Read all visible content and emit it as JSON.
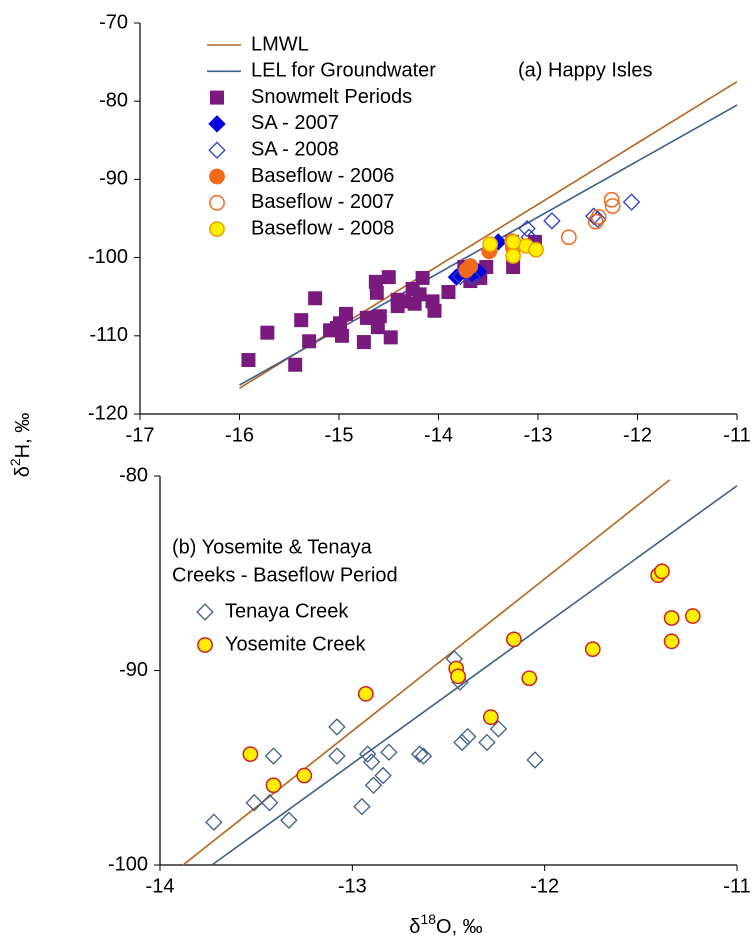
{
  "chart_data": [
    {
      "type": "scatter",
      "annotation": "(a) Happy Isles",
      "ylabel_parts": [
        "δ",
        "2",
        "H, ‰"
      ],
      "xlim": [
        -17,
        -11
      ],
      "xticks": [
        -17,
        -16,
        -15,
        -14,
        -13,
        -12,
        -11
      ],
      "ylim": [
        -120,
        -70
      ],
      "yticks": [
        -120,
        -110,
        -100,
        -90,
        -80,
        -70
      ],
      "series": [
        {
          "name": "LMWL",
          "mark": "line",
          "color": "#b5651d",
          "x": [
            -16,
            -11
          ],
          "values": [
            -116.7,
            -77.5
          ]
        },
        {
          "name": "LEL for Groundwater",
          "mark": "line",
          "color": "#3d5f8a",
          "x": [
            -16,
            -11
          ],
          "values": [
            -116.3,
            -80.5
          ]
        },
        {
          "name": "Snowmelt Periods",
          "mark": "square",
          "filled": true,
          "color": "#7b1a7e",
          "x": [
            -15.91,
            -15.72,
            -15.44,
            -15.38,
            -15.3,
            -15.24,
            -15.09,
            -15.02,
            -14.99,
            -14.97,
            -14.93,
            -14.75,
            -14.72,
            -14.69,
            -14.63,
            -14.62,
            -14.62,
            -14.61,
            -14.59,
            -14.5,
            -14.48,
            -14.41,
            -14.41,
            -14.34,
            -14.26,
            -14.24,
            -14.19,
            -14.16,
            -14.06,
            -14.04,
            -13.9,
            -13.74,
            -13.68,
            -13.58,
            -13.52,
            -13.26,
            -13.25,
            -13.03
          ],
          "values": [
            -113.1,
            -109.6,
            -113.7,
            -108.0,
            -110.7,
            -105.2,
            -109.3,
            -109.0,
            -108.4,
            -110.0,
            -107.2,
            -110.8,
            -107.7,
            -107.7,
            -103.1,
            -104.5,
            -107.7,
            -108.9,
            -107.5,
            -102.5,
            -110.2,
            -106.2,
            -105.4,
            -105.6,
            -104.0,
            -105.9,
            -104.7,
            -102.6,
            -105.6,
            -106.8,
            -104.4,
            -101.2,
            -103.0,
            -102.6,
            -101.2,
            -98.0,
            -101.2,
            -98.0
          ]
        },
        {
          "name": "SA - 2007",
          "mark": "diamond",
          "filled": true,
          "color": "#0000e0",
          "x": [
            -13.82,
            -13.72,
            -13.6,
            -13.4,
            -13.66
          ],
          "values": [
            -102.5,
            -101.3,
            -101.8,
            -98.0,
            -102.0
          ]
        },
        {
          "name": "SA - 2008",
          "mark": "diamond",
          "filled": false,
          "color": "#2a3fc0",
          "x": [
            -13.78,
            -13.66,
            -13.11,
            -13.09,
            -12.86,
            -12.44,
            -12.4,
            -12.06
          ],
          "values": [
            -102.4,
            -102.5,
            -96.3,
            -97.4,
            -95.3,
            -94.7,
            -95.1,
            -92.9
          ]
        },
        {
          "name": "Baseflow - 2006",
          "mark": "circle",
          "filled": true,
          "color": "#f26b1d",
          "x": [
            -13.72,
            -13.68,
            -13.49,
            -13.26,
            -13.25,
            -13.23
          ],
          "values": [
            -101.6,
            -101.1,
            -99.2,
            -97.9,
            -98.8,
            -98.4
          ]
        },
        {
          "name": "Baseflow - 2007",
          "mark": "circle",
          "filled": false,
          "color": "#f26b1d",
          "x": [
            -12.42,
            -12.39,
            -12.26,
            -12.25,
            -12.69
          ],
          "values": [
            -95.4,
            -94.8,
            -92.6,
            -93.4,
            -97.4
          ]
        },
        {
          "name": "Baseflow - 2008",
          "mark": "circle",
          "filled": true,
          "color": "#ffee00",
          "edge": "#e8a000",
          "x": [
            -13.48,
            -13.25,
            -13.12,
            -13.02,
            -13.25
          ],
          "values": [
            -98.3,
            -99.8,
            -98.5,
            -99.0,
            -98.0
          ]
        }
      ]
    },
    {
      "type": "scatter",
      "annotation_lines": [
        "(b) Yosemite & Tenaya",
        "Creeks - Baseflow Period"
      ],
      "xlabel_parts": [
        "δ",
        "18",
        "O, ‰"
      ],
      "xlim": [
        -14,
        -11
      ],
      "xticks": [
        -14,
        -13,
        -12,
        -11
      ],
      "ylim": [
        -100,
        -80
      ],
      "yticks": [
        -100,
        -90,
        -80
      ],
      "series": [
        {
          "mark": "line",
          "color": "#b5651d",
          "x": [
            -13.88,
            -11.35
          ],
          "values": [
            -100,
            -80.2
          ]
        },
        {
          "mark": "line",
          "color": "#3d5f8a",
          "x": [
            -13.73,
            -11
          ],
          "values": [
            -100,
            -80.5
          ]
        },
        {
          "name": "Tenaya Creek",
          "mark": "diamond",
          "filled": false,
          "color": "#3d5f8a",
          "x": [
            -13.72,
            -13.51,
            -13.43,
            -13.41,
            -13.33,
            -13.08,
            -13.08,
            -12.95,
            -12.92,
            -12.9,
            -12.89,
            -12.84,
            -12.81,
            -12.65,
            -12.63,
            -12.47,
            -12.44,
            -12.43,
            -12.4,
            -12.3,
            -12.24,
            -12.05
          ],
          "values": [
            -97.8,
            -96.8,
            -96.8,
            -94.4,
            -97.7,
            -92.9,
            -94.4,
            -97.0,
            -94.3,
            -94.7,
            -95.9,
            -95.4,
            -94.2,
            -94.3,
            -94.4,
            -89.4,
            -90.6,
            -93.7,
            -93.4,
            -93.7,
            -93.0,
            -94.6
          ]
        },
        {
          "name": "Yosemite Creek",
          "mark": "circle",
          "filled": true,
          "color": "#ffee00",
          "edge": "#d0202a",
          "x": [
            -13.53,
            -13.41,
            -13.25,
            -12.93,
            -12.46,
            -12.45,
            -12.28,
            -12.16,
            -12.08,
            -11.75,
            -11.41,
            -11.39,
            -11.34,
            -11.34,
            -11.23
          ],
          "values": [
            -94.3,
            -95.9,
            -95.4,
            -91.2,
            -89.9,
            -90.3,
            -92.4,
            -88.4,
            -90.4,
            -88.9,
            -85.1,
            -84.9,
            -87.3,
            -88.5,
            -87.2
          ]
        }
      ]
    }
  ]
}
